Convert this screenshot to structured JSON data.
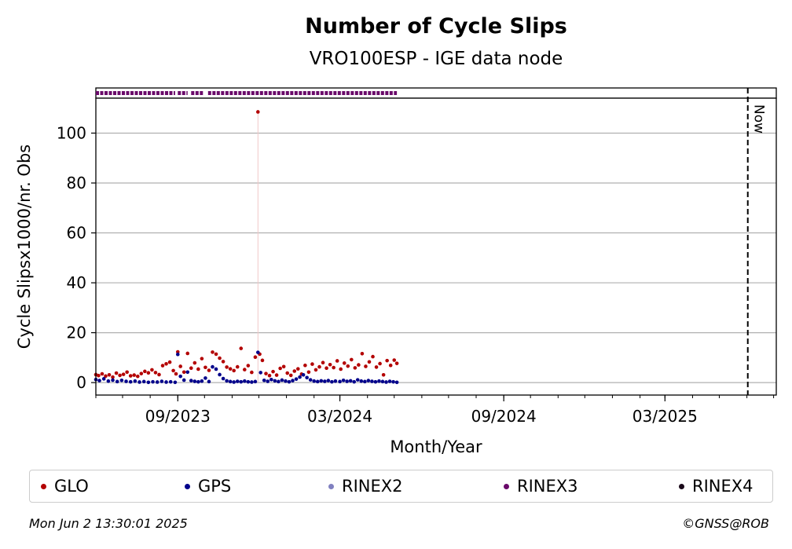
{
  "chart_data": {
    "type": "scatter",
    "title": "Number of Cycle Slips",
    "subtitle": "VRO100ESP - IGE data node",
    "xlabel": "Month/Year",
    "ylabel": "Cycle Slipsx1000/nr. Obs",
    "xlim": [
      "2023-06-01",
      "2025-07-04"
    ],
    "ylim": [
      -5,
      114
    ],
    "yticks": [
      0,
      20,
      40,
      60,
      80,
      100
    ],
    "xticks": [
      "2023-09-01",
      "2024-03-01",
      "2024-09-01",
      "2025-03-01"
    ],
    "xtick_labels": [
      "09/2023",
      "03/2024",
      "09/2024",
      "03/2025"
    ],
    "grid": "horizontal",
    "now_marker": {
      "date": "2025-06-02",
      "label": "Now"
    },
    "series": [
      {
        "name": "GLO",
        "color": "#b30000",
        "points": [
          [
            "2023-06-01",
            3.2
          ],
          [
            "2023-06-04",
            2.8
          ],
          [
            "2023-06-08",
            3.5
          ],
          [
            "2023-06-12",
            2.6
          ],
          [
            "2023-06-16",
            3.1
          ],
          [
            "2023-06-20",
            2.2
          ],
          [
            "2023-06-24",
            3.8
          ],
          [
            "2023-06-28",
            2.9
          ],
          [
            "2023-07-02",
            3.3
          ],
          [
            "2023-07-06",
            4.2
          ],
          [
            "2023-07-10",
            2.7
          ],
          [
            "2023-07-14",
            3.0
          ],
          [
            "2023-07-18",
            2.5
          ],
          [
            "2023-07-22",
            3.6
          ],
          [
            "2023-07-26",
            4.5
          ],
          [
            "2023-07-30",
            3.9
          ],
          [
            "2023-08-03",
            5.1
          ],
          [
            "2023-08-07",
            4.0
          ],
          [
            "2023-08-11",
            3.2
          ],
          [
            "2023-08-15",
            6.8
          ],
          [
            "2023-08-19",
            7.5
          ],
          [
            "2023-08-23",
            8.2
          ],
          [
            "2023-08-27",
            4.8
          ],
          [
            "2023-08-30",
            3.5
          ],
          [
            "2023-09-01",
            12.3
          ],
          [
            "2023-09-04",
            6.5
          ],
          [
            "2023-09-08",
            4.2
          ],
          [
            "2023-09-12",
            11.7
          ],
          [
            "2023-09-16",
            5.8
          ],
          [
            "2023-09-20",
            7.9
          ],
          [
            "2023-09-24",
            5.4
          ],
          [
            "2023-09-28",
            9.6
          ],
          [
            "2023-10-02",
            6.1
          ],
          [
            "2023-10-06",
            4.9
          ],
          [
            "2023-10-10",
            12.2
          ],
          [
            "2023-10-14",
            11.4
          ],
          [
            "2023-10-18",
            9.8
          ],
          [
            "2023-10-22",
            8.4
          ],
          [
            "2023-10-26",
            6.2
          ],
          [
            "2023-10-30",
            5.5
          ],
          [
            "2023-11-03",
            4.8
          ],
          [
            "2023-11-07",
            6.3
          ],
          [
            "2023-11-11",
            13.7
          ],
          [
            "2023-11-15",
            5.2
          ],
          [
            "2023-11-19",
            6.8
          ],
          [
            "2023-11-23",
            4.1
          ],
          [
            "2023-11-27",
            10.2
          ],
          [
            "2023-11-30",
            108.5
          ],
          [
            "2023-12-02",
            11.4
          ],
          [
            "2023-12-05",
            8.9
          ],
          [
            "2023-12-09",
            3.6
          ],
          [
            "2023-12-13",
            2.8
          ],
          [
            "2023-12-17",
            4.4
          ],
          [
            "2023-12-21",
            3.0
          ],
          [
            "2023-12-25",
            5.7
          ],
          [
            "2023-12-29",
            6.4
          ],
          [
            "2024-01-02",
            3.8
          ],
          [
            "2024-01-06",
            2.9
          ],
          [
            "2024-01-10",
            4.6
          ],
          [
            "2024-01-14",
            5.5
          ],
          [
            "2024-01-18",
            3.4
          ],
          [
            "2024-01-22",
            6.9
          ],
          [
            "2024-01-26",
            4.2
          ],
          [
            "2024-01-30",
            7.4
          ],
          [
            "2024-02-03",
            5.1
          ],
          [
            "2024-02-07",
            6.3
          ],
          [
            "2024-02-11",
            8.0
          ],
          [
            "2024-02-15",
            5.8
          ],
          [
            "2024-02-19",
            7.2
          ],
          [
            "2024-02-23",
            6.0
          ],
          [
            "2024-02-27",
            8.7
          ],
          [
            "2024-03-02",
            5.4
          ],
          [
            "2024-03-06",
            7.8
          ],
          [
            "2024-03-10",
            6.6
          ],
          [
            "2024-03-14",
            9.2
          ],
          [
            "2024-03-18",
            5.9
          ],
          [
            "2024-03-22",
            7.1
          ],
          [
            "2024-03-26",
            11.6
          ],
          [
            "2024-03-30",
            6.5
          ],
          [
            "2024-04-03",
            8.3
          ],
          [
            "2024-04-07",
            10.4
          ],
          [
            "2024-04-11",
            6.2
          ],
          [
            "2024-04-15",
            7.6
          ],
          [
            "2024-04-19",
            3.1
          ],
          [
            "2024-04-23",
            8.8
          ],
          [
            "2024-04-27",
            6.9
          ],
          [
            "2024-05-01",
            9.0
          ],
          [
            "2024-05-04",
            7.7
          ]
        ]
      },
      {
        "name": "GPS",
        "color": "#00008b",
        "points": [
          [
            "2023-06-01",
            1.2
          ],
          [
            "2023-06-05",
            0.8
          ],
          [
            "2023-06-10",
            1.5
          ],
          [
            "2023-06-15",
            0.6
          ],
          [
            "2023-06-20",
            1.0
          ],
          [
            "2023-06-25",
            0.4
          ],
          [
            "2023-06-30",
            0.9
          ],
          [
            "2023-07-05",
            0.5
          ],
          [
            "2023-07-10",
            0.3
          ],
          [
            "2023-07-15",
            0.6
          ],
          [
            "2023-07-20",
            0.2
          ],
          [
            "2023-07-25",
            0.4
          ],
          [
            "2023-07-30",
            0.1
          ],
          [
            "2023-08-04",
            0.3
          ],
          [
            "2023-08-09",
            0.2
          ],
          [
            "2023-08-14",
            0.5
          ],
          [
            "2023-08-19",
            0.2
          ],
          [
            "2023-08-24",
            0.3
          ],
          [
            "2023-08-29",
            0.1
          ],
          [
            "2023-09-01",
            11.3
          ],
          [
            "2023-09-04",
            2.5
          ],
          [
            "2023-09-08",
            1.0
          ],
          [
            "2023-09-12",
            4.2
          ],
          [
            "2023-09-16",
            0.8
          ],
          [
            "2023-09-20",
            0.5
          ],
          [
            "2023-09-24",
            0.3
          ],
          [
            "2023-09-28",
            0.6
          ],
          [
            "2023-10-02",
            1.8
          ],
          [
            "2023-10-06",
            0.4
          ],
          [
            "2023-10-10",
            6.3
          ],
          [
            "2023-10-14",
            5.4
          ],
          [
            "2023-10-18",
            3.2
          ],
          [
            "2023-10-22",
            1.6
          ],
          [
            "2023-10-26",
            0.7
          ],
          [
            "2023-10-30",
            0.4
          ],
          [
            "2023-11-03",
            0.2
          ],
          [
            "2023-11-07",
            0.5
          ],
          [
            "2023-11-11",
            0.3
          ],
          [
            "2023-11-15",
            0.6
          ],
          [
            "2023-11-19",
            0.3
          ],
          [
            "2023-11-23",
            0.2
          ],
          [
            "2023-11-27",
            0.4
          ],
          [
            "2023-11-30",
            12.1
          ],
          [
            "2023-12-03",
            4.0
          ],
          [
            "2023-12-07",
            0.9
          ],
          [
            "2023-12-11",
            0.5
          ],
          [
            "2023-12-15",
            1.2
          ],
          [
            "2023-12-19",
            0.7
          ],
          [
            "2023-12-23",
            0.4
          ],
          [
            "2023-12-27",
            1.0
          ],
          [
            "2023-12-31",
            0.6
          ],
          [
            "2024-01-04",
            0.3
          ],
          [
            "2024-01-08",
            0.8
          ],
          [
            "2024-01-12",
            1.4
          ],
          [
            "2024-01-16",
            2.2
          ],
          [
            "2024-01-20",
            3.1
          ],
          [
            "2024-01-24",
            2.0
          ],
          [
            "2024-01-28",
            1.1
          ],
          [
            "2024-02-01",
            0.6
          ],
          [
            "2024-02-05",
            0.4
          ],
          [
            "2024-02-09",
            0.7
          ],
          [
            "2024-02-13",
            0.5
          ],
          [
            "2024-02-17",
            0.8
          ],
          [
            "2024-02-21",
            0.3
          ],
          [
            "2024-02-25",
            0.6
          ],
          [
            "2024-03-01",
            0.4
          ],
          [
            "2024-03-05",
            0.9
          ],
          [
            "2024-03-09",
            0.5
          ],
          [
            "2024-03-13",
            0.7
          ],
          [
            "2024-03-17",
            0.3
          ],
          [
            "2024-03-21",
            1.1
          ],
          [
            "2024-03-25",
            0.6
          ],
          [
            "2024-03-29",
            0.4
          ],
          [
            "2024-04-02",
            0.8
          ],
          [
            "2024-04-06",
            0.5
          ],
          [
            "2024-04-10",
            0.3
          ],
          [
            "2024-04-14",
            0.6
          ],
          [
            "2024-04-18",
            0.4
          ],
          [
            "2024-04-22",
            0.2
          ],
          [
            "2024-04-26",
            0.5
          ],
          [
            "2024-04-30",
            0.3
          ],
          [
            "2024-05-04",
            0.1
          ]
        ]
      },
      {
        "name": "RINEX2",
        "color": "#8080c0",
        "points": []
      },
      {
        "name": "RINEX3",
        "color": "#6a0a6a",
        "segments": [
          [
            "2023-06-01",
            "2023-08-29"
          ],
          [
            "2023-09-01",
            "2023-09-12"
          ],
          [
            "2023-09-16",
            "2023-09-30"
          ],
          [
            "2023-10-05",
            "2024-05-04"
          ]
        ]
      },
      {
        "name": "RINEX4",
        "color": "#1a0a1a",
        "points": []
      }
    ]
  },
  "footer": {
    "timestamp": "Mon Jun  2 13:30:01 2025",
    "credit": "©GNSS@ROB"
  }
}
